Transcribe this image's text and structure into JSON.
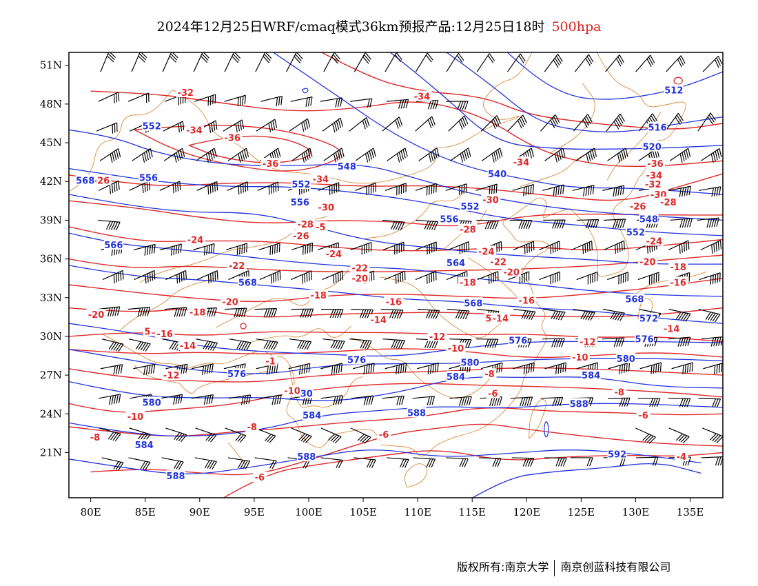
{
  "title": {
    "main": "2024年12月25日WRF/cmaq模式36km预报产品:12月25日18时",
    "level": "500hpa"
  },
  "colors": {
    "height_contour": "#2233dd",
    "temperature_contour": "#e02828",
    "coastline": "#d98a3a",
    "wind_barb": "#000000",
    "level_text": "#e02020"
  },
  "map": {
    "lon_range": [
      78,
      138
    ],
    "lat_range": [
      17.5,
      52
    ],
    "lon_ticks": [
      {
        "v": 80,
        "label": "80E"
      },
      {
        "v": 85,
        "label": "85E"
      },
      {
        "v": 90,
        "label": "90E"
      },
      {
        "v": 95,
        "label": "95E"
      },
      {
        "v": 100,
        "label": "100E"
      },
      {
        "v": 105,
        "label": "105E"
      },
      {
        "v": 110,
        "label": "110E"
      },
      {
        "v": 115,
        "label": "115E"
      },
      {
        "v": 120,
        "label": "120E"
      },
      {
        "v": 125,
        "label": "125E"
      },
      {
        "v": 130,
        "label": "130E"
      },
      {
        "v": 135,
        "label": "135E"
      }
    ],
    "lat_ticks": [
      {
        "v": 51,
        "label": "51N"
      },
      {
        "v": 48,
        "label": "48N"
      },
      {
        "v": 45,
        "label": "45N"
      },
      {
        "v": 42,
        "label": "42N"
      },
      {
        "v": 39,
        "label": "39N"
      },
      {
        "v": 36,
        "label": "36N"
      },
      {
        "v": 33,
        "label": "33N"
      },
      {
        "v": 30,
        "label": "30N"
      },
      {
        "v": 27,
        "label": "27N"
      },
      {
        "v": 24,
        "label": "24N"
      },
      {
        "v": 21,
        "label": "21N"
      }
    ],
    "height_labels": [
      {
        "text": "512",
        "lon": 133.5,
        "lat": 49.1
      },
      {
        "text": "516",
        "lon": 132,
        "lat": 46.2
      },
      {
        "text": "520",
        "lon": 131.5,
        "lat": 44.7
      },
      {
        "text": "540",
        "lon": 117.3,
        "lat": 42.6
      },
      {
        "text": "548",
        "lon": 103.5,
        "lat": 43.2
      },
      {
        "text": "548",
        "lon": 131.2,
        "lat": 39.1
      },
      {
        "text": "552",
        "lon": 85.6,
        "lat": 46.3
      },
      {
        "text": "552",
        "lon": 99.3,
        "lat": 41.8
      },
      {
        "text": "552",
        "lon": 114.8,
        "lat": 40.1
      },
      {
        "text": "552",
        "lon": 130,
        "lat": 38.1
      },
      {
        "text": "556",
        "lon": 85.3,
        "lat": 42.3
      },
      {
        "text": "556",
        "lon": 99.2,
        "lat": 40.4
      },
      {
        "text": "556",
        "lon": 112.9,
        "lat": 39.1
      },
      {
        "text": "564",
        "lon": 113.5,
        "lat": 35.7
      },
      {
        "text": "566",
        "lon": 82.1,
        "lat": 37.1
      },
      {
        "text": "568",
        "lon": 79.5,
        "lat": 42.1
      },
      {
        "text": "568",
        "lon": 94.4,
        "lat": 34.2
      },
      {
        "text": "568",
        "lon": 129.9,
        "lat": 32.9
      },
      {
        "text": "568",
        "lon": 115.1,
        "lat": 32.6
      },
      {
        "text": "572",
        "lon": 131.2,
        "lat": 31.4
      },
      {
        "text": "576",
        "lon": 119.2,
        "lat": 29.7
      },
      {
        "text": "576",
        "lon": 130.8,
        "lat": 29.8
      },
      {
        "text": "576",
        "lon": 104.4,
        "lat": 28.2
      },
      {
        "text": "576",
        "lon": 93.4,
        "lat": 27.1
      },
      {
        "text": "580",
        "lon": 114.8,
        "lat": 28.0
      },
      {
        "text": "580",
        "lon": 129.1,
        "lat": 28.3
      },
      {
        "text": "580",
        "lon": 85.6,
        "lat": 24.9
      },
      {
        "text": "584",
        "lon": 113.5,
        "lat": 26.9
      },
      {
        "text": "584",
        "lon": 125.9,
        "lat": 27.0
      },
      {
        "text": "584",
        "lon": 100.3,
        "lat": 23.9
      },
      {
        "text": "584",
        "lon": 84.9,
        "lat": 21.6
      },
      {
        "text": "588",
        "lon": 124.8,
        "lat": 24.8
      },
      {
        "text": "588",
        "lon": 109.9,
        "lat": 24.1
      },
      {
        "text": "588",
        "lon": 99.8,
        "lat": 20.7
      },
      {
        "text": "588",
        "lon": 87.8,
        "lat": 19.2
      },
      {
        "text": "592",
        "lon": 128.3,
        "lat": 20.9
      },
      {
        "text": "30",
        "lon": 99.8,
        "lat": 25.6
      }
    ],
    "temperature_labels": [
      {
        "text": "-32",
        "lon": 88.7,
        "lat": 48.9
      },
      {
        "text": "-34",
        "lon": 89.5,
        "lat": 46.0
      },
      {
        "text": "-34",
        "lon": 110.4,
        "lat": 48.6
      },
      {
        "text": "-36",
        "lon": 93,
        "lat": 45.4
      },
      {
        "text": "-36",
        "lon": 96.5,
        "lat": 43.4
      },
      {
        "text": "-34",
        "lon": 101.1,
        "lat": 42.2
      },
      {
        "text": "-34",
        "lon": 119.5,
        "lat": 43.5
      },
      {
        "text": "-36",
        "lon": 131.8,
        "lat": 43.4
      },
      {
        "text": "-34",
        "lon": 131.7,
        "lat": 42.5
      },
      {
        "text": "-32",
        "lon": 131.6,
        "lat": 41.8
      },
      {
        "text": "-30",
        "lon": 132.1,
        "lat": 41.0
      },
      {
        "text": "-28",
        "lon": 133.0,
        "lat": 40.4
      },
      {
        "text": "-26",
        "lon": 130.2,
        "lat": 40.1
      },
      {
        "text": "-30",
        "lon": 116.7,
        "lat": 40.6
      },
      {
        "text": "-30",
        "lon": 101.6,
        "lat": 40.0
      },
      {
        "text": "-28",
        "lon": 99.7,
        "lat": 38.7
      },
      {
        "text": "-28",
        "lon": 114.6,
        "lat": 38.3
      },
      {
        "text": "-26",
        "lon": 81.0,
        "lat": 42.1
      },
      {
        "text": "-26",
        "lon": 99.3,
        "lat": 37.8
      },
      {
        "text": "-24",
        "lon": 89.6,
        "lat": 37.5
      },
      {
        "text": "-24",
        "lon": 102.3,
        "lat": 36.4
      },
      {
        "text": "-24",
        "lon": 116.3,
        "lat": 36.6
      },
      {
        "text": "-24",
        "lon": 131.7,
        "lat": 37.4
      },
      {
        "text": "-22",
        "lon": 93.4,
        "lat": 35.5
      },
      {
        "text": "-22",
        "lon": 104.7,
        "lat": 35.3
      },
      {
        "text": "-22",
        "lon": 117.4,
        "lat": 35.8
      },
      {
        "text": "-20",
        "lon": 118.6,
        "lat": 35.0
      },
      {
        "text": "-20",
        "lon": 131.1,
        "lat": 35.8
      },
      {
        "text": "-20",
        "lon": 104.7,
        "lat": 34.5
      },
      {
        "text": "-20",
        "lon": 92.8,
        "lat": 32.7
      },
      {
        "text": "-20",
        "lon": 80.5,
        "lat": 31.7
      },
      {
        "text": "-18",
        "lon": 133.9,
        "lat": 35.4
      },
      {
        "text": "-18",
        "lon": 100.9,
        "lat": 33.2
      },
      {
        "text": "-18",
        "lon": 114.6,
        "lat": 34.2
      },
      {
        "text": "-18",
        "lon": 89.8,
        "lat": 31.9
      },
      {
        "text": "-16",
        "lon": 133.9,
        "lat": 34.2
      },
      {
        "text": "-16",
        "lon": 107.8,
        "lat": 32.7
      },
      {
        "text": "-16",
        "lon": 120.0,
        "lat": 32.8
      },
      {
        "text": "-16",
        "lon": 86.8,
        "lat": 30.2
      },
      {
        "text": "-14",
        "lon": 106.4,
        "lat": 31.3
      },
      {
        "text": "-14",
        "lon": 117.6,
        "lat": 31.4
      },
      {
        "text": "-14",
        "lon": 133.3,
        "lat": 30.6
      },
      {
        "text": "-14",
        "lon": 88.9,
        "lat": 29.3
      },
      {
        "text": "-12",
        "lon": 111.8,
        "lat": 30.0
      },
      {
        "text": "-12",
        "lon": 125.6,
        "lat": 29.6
      },
      {
        "text": "-12",
        "lon": 87.4,
        "lat": 27.0
      },
      {
        "text": "-10",
        "lon": 113.5,
        "lat": 29.1
      },
      {
        "text": "-10",
        "lon": 124.9,
        "lat": 28.4
      },
      {
        "text": "-10",
        "lon": 98.5,
        "lat": 25.8
      },
      {
        "text": "-10",
        "lon": 84.1,
        "lat": 23.8
      },
      {
        "text": "-8",
        "lon": 116.6,
        "lat": 27.1
      },
      {
        "text": "-8",
        "lon": 128.5,
        "lat": 25.7
      },
      {
        "text": "-8",
        "lon": 94.8,
        "lat": 23.0
      },
      {
        "text": "-8",
        "lon": 80.4,
        "lat": 22.2
      },
      {
        "text": "-6",
        "lon": 116.9,
        "lat": 25.6
      },
      {
        "text": "-6",
        "lon": 130.7,
        "lat": 23.9
      },
      {
        "text": "-6",
        "lon": 106.9,
        "lat": 22.4
      },
      {
        "text": "-6",
        "lon": 95.5,
        "lat": 19.1
      },
      {
        "text": "-4",
        "lon": 134.2,
        "lat": 20.7
      },
      {
        "text": "-5",
        "lon": 101.1,
        "lat": 38.5
      },
      {
        "text": "5",
        "lon": 116.5,
        "lat": 31.4
      },
      {
        "text": "5",
        "lon": 85.2,
        "lat": 30.4
      },
      {
        "text": "-1",
        "lon": 96.5,
        "lat": 28.1
      }
    ]
  },
  "footer": {
    "copyright": "版权所有:南京大学",
    "company": "南京创蓝科技有限公司"
  }
}
